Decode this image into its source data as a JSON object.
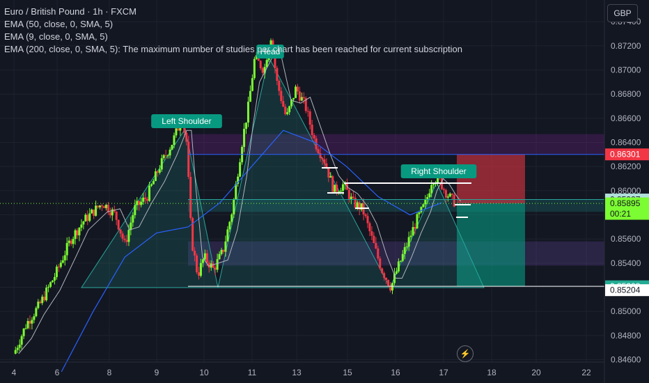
{
  "legend": {
    "symbol": "Euro / British Pound · 1h · FXCM",
    "ema1": "EMA (50, close, 0, SMA, 5)",
    "ema2": "EMA (9, close, 0, SMA, 5)",
    "ema3": "EMA (200, close, 0, SMA, 5): The maximum number of studies per chart has been reached for current subscription"
  },
  "currency_button": "GBP",
  "colors": {
    "background": "#131722",
    "bull": "#7cfc32",
    "bear": "#f23645",
    "ema50": "#2962ff",
    "ema9": "#b2b5be",
    "pattern_label": "#089981",
    "stop_zone": "#f23645",
    "target_zone": "#089981",
    "price_tag_green": "#22ab94",
    "price_tag_red": "#f23645"
  },
  "chart_data": {
    "type": "candlestick",
    "x_axis_ticks": [
      "4",
      "6",
      "8",
      "9",
      "10",
      "11",
      "13",
      "15",
      "16",
      "17",
      "18",
      "20",
      "22"
    ],
    "y_axis_ticks": [
      "0.87400",
      "0.87200",
      "0.87000",
      "0.86800",
      "0.86600",
      "0.86400",
      "0.86200",
      "0.86000",
      "0.85800",
      "0.85600",
      "0.85400",
      "0.85200",
      "0.85000",
      "0.84800",
      "0.84600"
    ],
    "ylim": [
      0.8458,
      0.8758
    ],
    "annotations": {
      "left_shoulder": "Left Shoulder",
      "head": "Head",
      "right_shoulder": "Right Shoulder"
    },
    "price_labels": {
      "stop": "0.86301",
      "level": "0.85927",
      "current": "0.85895",
      "countdown": "00:21",
      "target": "0.85208",
      "low": "0.85204"
    },
    "levels": [
      {
        "price": 0.86301,
        "color": "#2962ff"
      },
      {
        "price": 0.85927,
        "color": "#26a69a"
      },
      {
        "price": 0.85208,
        "color": "#ffffff"
      }
    ],
    "zones": [
      {
        "from": 0.86301,
        "to": 0.86469,
        "color": "#9c27b0"
      },
      {
        "from": 0.85825,
        "to": 0.85927,
        "color": "#26a69a"
      },
      {
        "from": 0.8538,
        "to": 0.8558,
        "color": "#7e57c2"
      }
    ],
    "price_path": [
      [
        0,
        0.8465
      ],
      [
        0.4,
        0.849
      ],
      [
        0.8,
        0.8505
      ],
      [
        1.3,
        0.853
      ],
      [
        1.8,
        0.856
      ],
      [
        2.2,
        0.8575
      ],
      [
        2.8,
        0.859
      ],
      [
        3.2,
        0.858
      ],
      [
        3.5,
        0.8555
      ],
      [
        3.8,
        0.8585
      ],
      [
        4.2,
        0.8595
      ],
      [
        4.6,
        0.862
      ],
      [
        5.0,
        0.864
      ],
      [
        5.3,
        0.866
      ],
      [
        5.45,
        0.864
      ],
      [
        5.6,
        0.856
      ],
      [
        5.8,
        0.853
      ],
      [
        6.0,
        0.8545
      ],
      [
        6.3,
        0.8535
      ],
      [
        6.6,
        0.855
      ],
      [
        6.9,
        0.8585
      ],
      [
        7.2,
        0.864
      ],
      [
        7.4,
        0.867
      ],
      [
        7.6,
        0.871
      ],
      [
        7.9,
        0.87
      ],
      [
        8.1,
        0.873
      ],
      [
        8.3,
        0.869
      ],
      [
        8.6,
        0.866
      ],
      [
        8.9,
        0.8685
      ],
      [
        9.2,
        0.867
      ],
      [
        9.5,
        0.864
      ],
      [
        9.8,
        0.8625
      ],
      [
        10.1,
        0.86
      ],
      [
        10.4,
        0.8605
      ],
      [
        10.7,
        0.859
      ],
      [
        11.0,
        0.8585
      ],
      [
        11.3,
        0.856
      ],
      [
        11.6,
        0.8535
      ],
      [
        11.9,
        0.852
      ],
      [
        12.1,
        0.8535
      ],
      [
        12.4,
        0.8555
      ],
      [
        12.7,
        0.8575
      ],
      [
        13.0,
        0.859
      ],
      [
        13.2,
        0.861
      ],
      [
        13.4,
        0.861
      ],
      [
        13.6,
        0.86
      ],
      [
        13.8,
        0.8593
      ],
      [
        13.95,
        0.85895
      ]
    ],
    "ema50_path": [
      [
        1.5,
        0.845
      ],
      [
        2.5,
        0.85
      ],
      [
        3.5,
        0.8545
      ],
      [
        4.5,
        0.8565
      ],
      [
        5.5,
        0.857
      ],
      [
        6.5,
        0.859
      ],
      [
        7.5,
        0.862
      ],
      [
        8.5,
        0.865
      ],
      [
        9.5,
        0.864
      ],
      [
        10.5,
        0.862
      ],
      [
        11.5,
        0.8595
      ],
      [
        12.5,
        0.858
      ],
      [
        13.5,
        0.859
      ]
    ]
  }
}
